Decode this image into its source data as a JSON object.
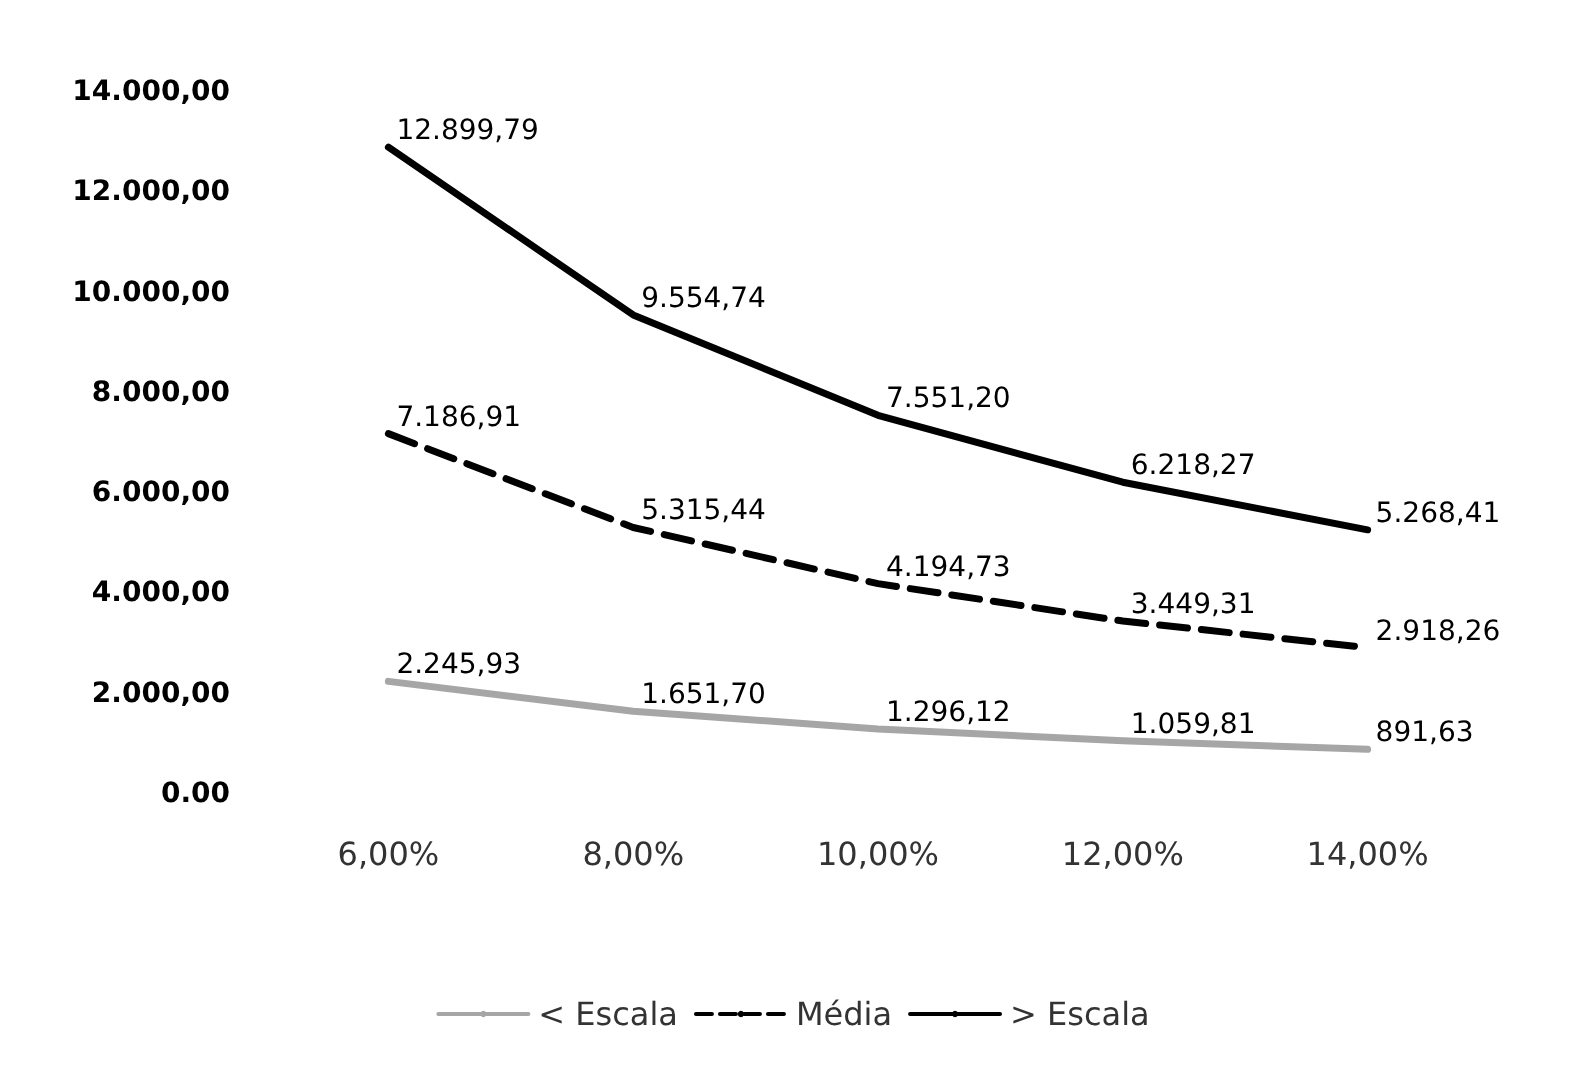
{
  "chart_data": {
    "type": "line",
    "categories": [
      "6,00%",
      "8,00%",
      "10,00%",
      "12,00%",
      "14,00%"
    ],
    "series": [
      {
        "name": "< Escala",
        "color": "#a6a6a6",
        "line_style": "solid",
        "values": [
          2245.93,
          1651.7,
          1296.12,
          1059.81,
          891.63
        ],
        "value_labels": [
          "2.245,93",
          "1.651,70",
          "1.296,12",
          "1.059,81",
          "891,63"
        ]
      },
      {
        "name": "Média",
        "color": "#000000",
        "line_style": "dashed",
        "values": [
          7186.91,
          5315.44,
          4194.73,
          3449.31,
          2918.26
        ],
        "value_labels": [
          "7.186,91",
          "5.315,44",
          "4.194,73",
          "3.449,31",
          "2.918,26"
        ]
      },
      {
        "name": "> Escala",
        "color": "#000000",
        "line_style": "solid",
        "values": [
          12899.79,
          9554.74,
          7551.2,
          6218.27,
          5268.41
        ],
        "value_labels": [
          "12.899,79",
          "9.554,74",
          "7.551,20",
          "6.218,27",
          "5.268,41"
        ]
      }
    ],
    "ylim": [
      0,
      14000
    ],
    "yticks": [
      {
        "value": 0,
        "label": "0.00"
      },
      {
        "value": 2000,
        "label": "2.000,00"
      },
      {
        "value": 4000,
        "label": "4.000,00"
      },
      {
        "value": 6000,
        "label": "6.000,00"
      },
      {
        "value": 8000,
        "label": "8.000,00"
      },
      {
        "value": 10000,
        "label": "10.000,00"
      },
      {
        "value": 12000,
        "label": "12.000,00"
      },
      {
        "value": 14000,
        "label": "14.000,00"
      }
    ],
    "marker": "none",
    "legend": "bottom"
  }
}
